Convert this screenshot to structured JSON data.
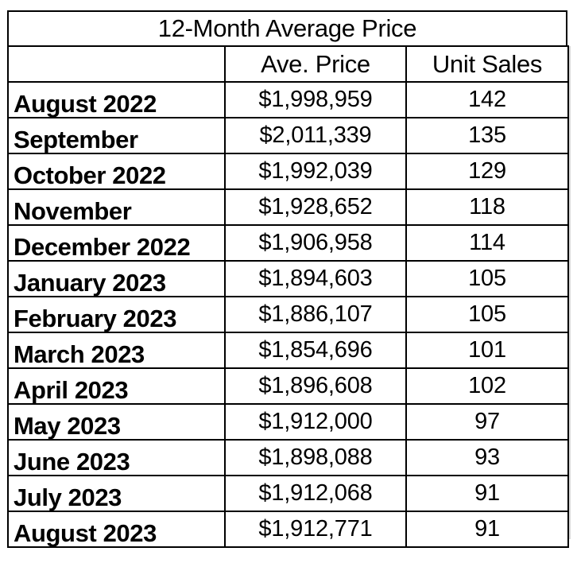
{
  "title": "12-Month Average Price",
  "headers": {
    "month": "",
    "price": "Ave. Price",
    "units": "Unit Sales"
  },
  "rows": [
    {
      "month": "August 2022",
      "price": "$1,998,959",
      "units": "142"
    },
    {
      "month": "September",
      "price": "$2,011,339",
      "units": "135"
    },
    {
      "month": "October 2022",
      "price": "$1,992,039",
      "units": "129"
    },
    {
      "month": "November",
      "price": "$1,928,652",
      "units": "118"
    },
    {
      "month": "December 2022",
      "price": "$1,906,958",
      "units": "114"
    },
    {
      "month": "January 2023",
      "price": "$1,894,603",
      "units": "105"
    },
    {
      "month": "February 2023",
      "price": "$1,886,107",
      "units": "105"
    },
    {
      "month": "March 2023",
      "price": "$1,854,696",
      "units": "101"
    },
    {
      "month": "April 2023",
      "price": "$1,896,608",
      "units": "102"
    },
    {
      "month": "May 2023",
      "price": "$1,912,000",
      "units": "97"
    },
    {
      "month": "June 2023",
      "price": "$1,898,088",
      "units": "93"
    },
    {
      "month": "July 2023",
      "price": "$1,912,068",
      "units": "91"
    },
    {
      "month": "August 2023",
      "price": "$1,912,771",
      "units": "91"
    }
  ]
}
